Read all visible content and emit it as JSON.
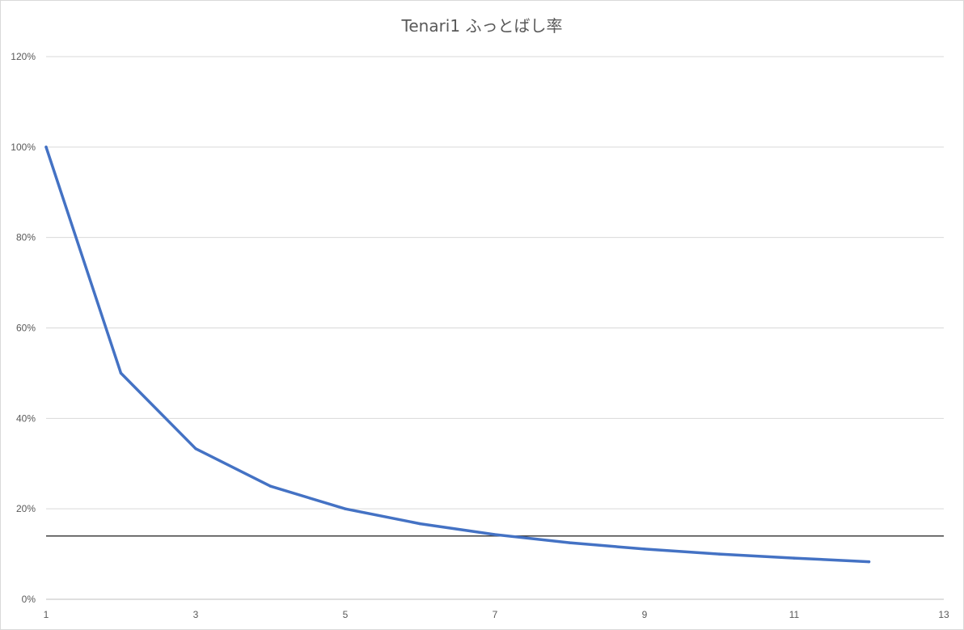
{
  "chart_data": {
    "type": "line",
    "title": "Tenari1 ふっとばし率",
    "xlabel": "",
    "ylabel": "",
    "xlim": [
      1,
      13
    ],
    "ylim": [
      0,
      1.2
    ],
    "x_ticks": [
      1,
      3,
      5,
      7,
      9,
      11,
      13
    ],
    "x_tick_labels": [
      "1",
      "3",
      "5",
      "7",
      "9",
      "11",
      "13"
    ],
    "y_ticks": [
      0,
      0.2,
      0.4,
      0.6,
      0.8,
      1.0,
      1.2
    ],
    "y_tick_labels": [
      "0%",
      "20%",
      "40%",
      "60%",
      "80%",
      "100%",
      "120%"
    ],
    "grid": true,
    "legend": "none",
    "series": [
      {
        "color": "#4472c4",
        "x": [
          1,
          2,
          3,
          4,
          5,
          6,
          7,
          8,
          9,
          10,
          11,
          12
        ],
        "values": [
          1.0,
          0.5,
          0.333,
          0.25,
          0.2,
          0.167,
          0.143,
          0.125,
          0.111,
          0.1,
          0.091,
          0.083
        ]
      }
    ],
    "reference_line": {
      "y": 0.14,
      "color": "#404040"
    }
  }
}
